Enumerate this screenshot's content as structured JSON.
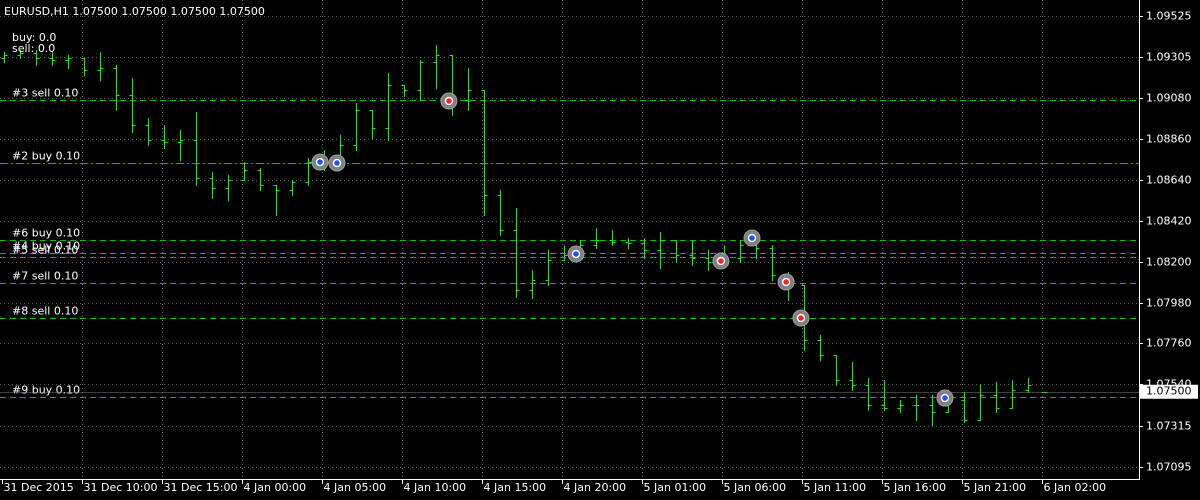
{
  "chart_data": {
    "type": "ohlc",
    "title": "EURUSD,H1  1.07500 1.07500 1.07500 1.07500",
    "info": [
      "buy: 0.0",
      "sell: 0.0"
    ],
    "color": "#00ff00",
    "grid": true,
    "ylim": [
      1.0703,
      1.0961
    ],
    "yticks": [
      1.09525,
      1.09305,
      {
        "value": 1.0908,
        "label": "1.09080"
      },
      {
        "value": 1.0886,
        "label": "1.08860"
      },
      {
        "value": 1.0864,
        "label": "1.08640"
      },
      {
        "value": 1.0842,
        "label": "1.08420"
      },
      {
        "value": 1.082,
        "label": "1.08200"
      },
      {
        "value": 1.0798,
        "label": "1.07980"
      },
      {
        "value": 1.0776,
        "label": "1.07760"
      },
      {
        "value": 1.0754,
        "label": "1.07540"
      },
      1.07315,
      1.07095
    ],
    "bid": {
      "value": 1.075,
      "label": "1.07500"
    },
    "categories": [
      "31 Dec 2015",
      null,
      null,
      null,
      null,
      "31 Dec 10:00",
      null,
      null,
      null,
      null,
      "31 Dec 15:00",
      null,
      null,
      null,
      null,
      "4 Jan 00:00",
      null,
      null,
      null,
      null,
      "4 Jan 05:00",
      null,
      null,
      null,
      null,
      "4 Jan 10:00",
      null,
      null,
      null,
      null,
      "4 Jan 15:00",
      null,
      null,
      null,
      null,
      "4 Jan 20:00",
      null,
      null,
      null,
      null,
      "5 Jan 01:00",
      null,
      null,
      null,
      null,
      "5 Jan 06:00",
      null,
      null,
      null,
      null,
      "5 Jan 11:00",
      null,
      null,
      null,
      null,
      "5 Jan 16:00",
      null,
      null,
      null,
      null,
      "5 Jan 21:00",
      null,
      null,
      null,
      null,
      "6 Jan 02:00"
    ],
    "open": [
      1.09298,
      1.09314,
      1.09325,
      1.09298,
      1.09287,
      1.09298,
      1.09233,
      1.09244,
      1.09098,
      1.08937,
      1.08856,
      1.08845,
      1.08856,
      1.08651,
      1.08597,
      1.08641,
      1.08694,
      1.08614,
      1.08587,
      1.0863,
      1.08737,
      1.08748,
      1.08829,
      1.09018,
      1.08921,
      1.09152,
      1.09125,
      1.09276,
      1.09314,
      1.09071,
      1.09125,
      1.0856,
      1.08371,
      1.08048,
      1.08102,
      1.0821,
      1.08237,
      1.0829,
      1.08317,
      1.08307,
      1.08301,
      1.08264,
      1.08317,
      1.08237,
      1.0822,
      1.08199,
      1.0822,
      1.0829,
      1.08274,
      1.08129,
      1.08075,
      1.07779,
      1.07698,
      1.07563,
      1.07536,
      1.07429,
      1.07413,
      1.07429,
      1.07429,
      1.07391,
      1.07456,
      1.07348,
      1.07483,
      1.07413,
      1.0751,
      1.075
    ],
    "high": [
      1.0933,
      1.09341,
      1.09341,
      1.0933,
      1.09314,
      1.09298,
      1.0933,
      1.0926,
      1.0919,
      1.08974,
      1.08937,
      1.0891,
      1.09007,
      1.08684,
      1.08667,
      1.08737,
      1.08705,
      1.08614,
      1.08641,
      1.08759,
      1.08802,
      1.08883,
      1.09055,
      1.09018,
      1.09217,
      1.09152,
      1.09287,
      1.09368,
      1.09314,
      1.09244,
      1.09125,
      1.08587,
      1.0849,
      1.08156,
      1.08264,
      1.0829,
      1.08317,
      1.08382,
      1.08371,
      1.08328,
      1.08328,
      1.0836,
      1.08317,
      1.08317,
      1.08264,
      1.0829,
      1.08317,
      1.0836,
      1.0829,
      1.08145,
      1.08075,
      1.07806,
      1.07698,
      1.0766,
      1.07574,
      1.07563,
      1.07456,
      1.07483,
      1.07483,
      1.0751,
      1.07499,
      1.07536,
      1.07553,
      1.07563,
      1.07574,
      1.075
    ],
    "low": [
      1.09276,
      1.09298,
      1.0926,
      1.0926,
      1.09244,
      1.09206,
      1.09179,
      1.09018,
      1.08899,
      1.08829,
      1.08813,
      1.08748,
      1.08614,
      1.08544,
      1.08533,
      1.08641,
      1.08587,
      1.08452,
      1.0856,
      1.08614,
      1.08694,
      1.08721,
      1.08802,
      1.08867,
      1.08856,
      1.09093,
      1.09071,
      1.09136,
      1.08991,
      1.09018,
      1.08452,
      1.08344,
      1.0801,
      1.08005,
      1.08075,
      1.0821,
      1.0822,
      1.08274,
      1.0829,
      1.08274,
      1.0822,
      1.08167,
      1.08199,
      1.08183,
      1.08156,
      1.08183,
      1.08199,
      1.0822,
      1.08102,
      1.07994,
      1.07725,
      1.07671,
      1.07536,
      1.0751,
      1.07402,
      1.07402,
      1.07391,
      1.07348,
      1.07321,
      1.07391,
      1.07337,
      1.07348,
      1.07391,
      1.07413,
      1.07499,
      1.075
    ],
    "close": [
      1.09314,
      1.09325,
      1.09298,
      1.09287,
      1.09298,
      1.09233,
      1.09244,
      1.09098,
      1.08937,
      1.08856,
      1.08845,
      1.08856,
      1.08651,
      1.08597,
      1.08641,
      1.08694,
      1.08614,
      1.08587,
      1.0863,
      1.08737,
      1.08748,
      1.08829,
      1.09018,
      1.08921,
      1.09152,
      1.09125,
      1.09276,
      1.09314,
      1.09071,
      1.09125,
      1.0856,
      1.08371,
      1.08048,
      1.08102,
      1.0821,
      1.08237,
      1.0829,
      1.08317,
      1.08307,
      1.08301,
      1.08264,
      1.08317,
      1.08237,
      1.0822,
      1.08199,
      1.0822,
      1.0829,
      1.08274,
      1.08129,
      1.08075,
      1.07779,
      1.07698,
      1.07563,
      1.07536,
      1.07429,
      1.07413,
      1.07429,
      1.07429,
      1.07391,
      1.07456,
      1.07348,
      1.07483,
      1.07413,
      1.0751,
      1.07536,
      1.075
    ],
    "orders": [
      {
        "label": "#3 sell 0.10",
        "price": 1.09071,
        "style": "dash"
      },
      {
        "label": "#2 buy 0.10",
        "price": 1.08732,
        "style": "dashdot"
      },
      {
        "label": "#6 buy 0.10",
        "price": 1.08317,
        "style": "dash"
      },
      {
        "label": "#4 buy 0.10",
        "price": 1.08247,
        "style": "dash"
      },
      {
        "label": "#5 sell 0.10",
        "price": 1.08226,
        "style": "dash"
      },
      {
        "label": "#7 sell 0.10",
        "price": 1.08086,
        "style": "dash"
      },
      {
        "label": "#8 sell 0.10",
        "price": 1.07897,
        "style": "dash"
      },
      {
        "label": "#9 buy 0.10",
        "price": 1.07472,
        "style": "dash"
      }
    ],
    "markers": [
      {
        "x": 19.75,
        "price": 1.08737,
        "color": "#1e50ff"
      },
      {
        "x": 20.81,
        "price": 1.08732,
        "color": "#1e50ff"
      },
      {
        "x": 27.81,
        "price": 1.09066,
        "color": "#ff2020"
      },
      {
        "x": 35.75,
        "price": 1.08242,
        "color": "#1e50ff"
      },
      {
        "x": 44.81,
        "price": 1.08204,
        "color": "#ff2020"
      },
      {
        "x": 46.75,
        "price": 1.08328,
        "color": "#1e50ff"
      },
      {
        "x": 48.88,
        "price": 1.08091,
        "color": "#ff2020"
      },
      {
        "x": 49.81,
        "price": 1.07897,
        "color": "#ff2020"
      },
      {
        "x": 58.81,
        "price": 1.07466,
        "color": "#1e50ff"
      }
    ]
  }
}
